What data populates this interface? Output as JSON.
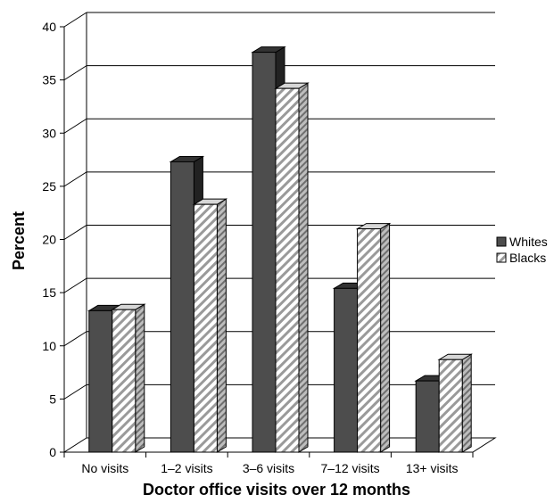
{
  "chart_data": {
    "type": "bar",
    "style": "3d-clustered",
    "categories": [
      "No visits",
      "1–2 visits",
      "3–6 visits",
      "7–12 visits",
      "13+ visits"
    ],
    "series": [
      {
        "name": "Whites",
        "values": [
          13.3,
          27.3,
          37.6,
          15.4,
          6.7
        ],
        "color": "#4d4d4d"
      },
      {
        "name": "Blacks",
        "values": [
          13.4,
          23.3,
          34.2,
          21.0,
          8.7
        ],
        "color": "#ffffff",
        "pattern": "diagonal-hatch"
      }
    ],
    "xlabel": "Doctor office visits over 12 months",
    "ylabel": "Percent",
    "ylim": [
      0,
      40
    ],
    "yticks": [
      "0",
      "5",
      "10",
      "15",
      "20",
      "25",
      "30",
      "35",
      "40"
    ],
    "grid": true,
    "legend_position": "right"
  }
}
